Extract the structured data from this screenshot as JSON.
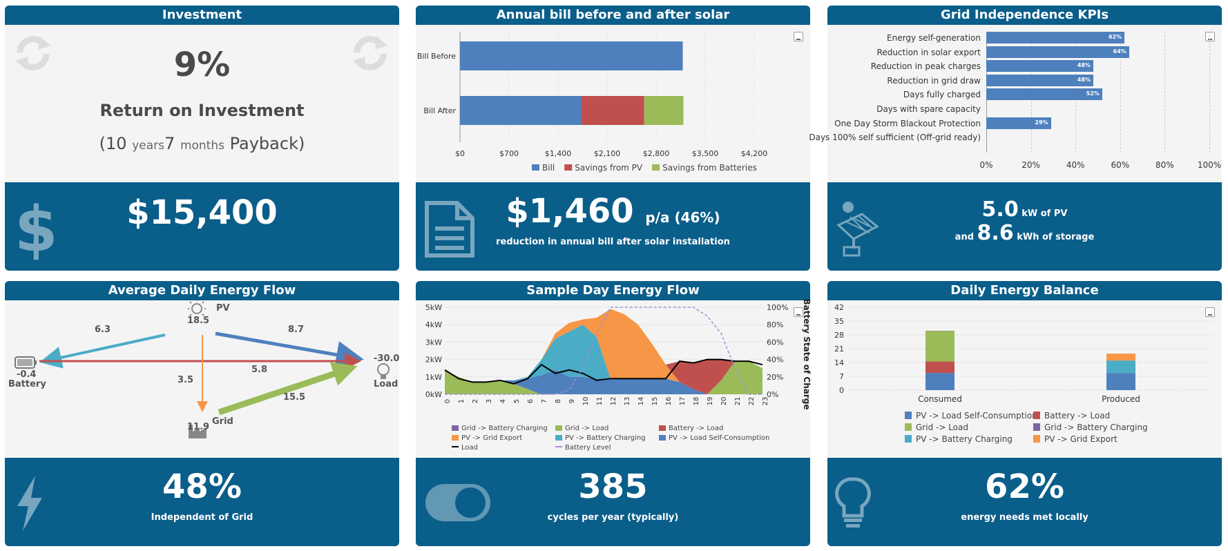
{
  "investment": {
    "title": "Investment",
    "roi_value": "9%",
    "roi_label": "Return on Investment",
    "payback_years": "10",
    "payback_years_unit": "years",
    "payback_months": "7",
    "payback_months_unit": "months",
    "payback_label": "Payback)",
    "payback_open": "(",
    "amount": "$15,400",
    "icons": [
      "refresh-icon",
      "dollar-icon"
    ]
  },
  "bill": {
    "title": "Annual bill before and after solar",
    "amount": "$1,460",
    "amount_suffix": "p/a (46%)",
    "caption": "reduction in annual bill after solar installation",
    "chart_data": {
      "type": "bar",
      "orientation": "horizontal",
      "stacked": true,
      "categories": [
        "Bill Before",
        "Bill After"
      ],
      "series": [
        {
          "name": "Bill",
          "values": [
            3180,
            1730
          ],
          "color": "#4e80bd"
        },
        {
          "name": "Savings from PV",
          "values": [
            0,
            900
          ],
          "color": "#c0504d"
        },
        {
          "name": "Savings from Batteries",
          "values": [
            0,
            560
          ],
          "color": "#9bbb59"
        }
      ],
      "x_ticks": [
        "$0",
        "$700",
        "$1,400",
        "$2,100",
        "$2,800",
        "$3,500",
        "$4,200"
      ],
      "xlim": [
        0,
        4200
      ],
      "legend": "bottom"
    }
  },
  "grid_kpi": {
    "title": "Grid Independence KPIs",
    "pv_value": "5.0",
    "pv_unit": "kW of PV",
    "and_label": "and",
    "storage_value": "8.6",
    "storage_unit": "kWh of storage",
    "chart_data": {
      "type": "bar",
      "orientation": "horizontal",
      "categories": [
        "Energy self-generation",
        "Reduction in solar export",
        "Reduction in peak charges",
        "Reduction in grid draw",
        "Days fully charged",
        "Days with spare capacity",
        "One Day Storm Blackout Protection",
        "Days 100% self sufficient (Off-grid ready)"
      ],
      "values": [
        62,
        64,
        48,
        48,
        52,
        0,
        29,
        0
      ],
      "value_labels": [
        "62%",
        "64%",
        "48%",
        "48%",
        "52%",
        "",
        "29%",
        ""
      ],
      "x_ticks": [
        "0%",
        "20%",
        "40%",
        "60%",
        "80%",
        "100%"
      ],
      "xlim": [
        0,
        100
      ]
    }
  },
  "flow": {
    "title": "Average Daily Energy Flow",
    "pv_label": "PV",
    "pv_value": "18.5",
    "battery_label": "Battery",
    "battery_value": "-0.4",
    "load_label": "Load",
    "load_value": "-30.0",
    "grid_label": "Grid",
    "grid_value": "11.9",
    "pv_to_battery": "6.3",
    "pv_to_load": "8.7",
    "battery_to_load": "5.8",
    "pv_to_grid": "3.5",
    "grid_to_load": "15.5",
    "independent_value": "48%",
    "independent_label": "Independent of Grid",
    "colors": {
      "pv_battery": "#4bacc6",
      "pv_load": "#4e80bd",
      "battery_load": "#c0504d",
      "pv_grid": "#f79646",
      "grid_load": "#9bbb59"
    }
  },
  "sample_day": {
    "title": "Sample Day Energy Flow",
    "cycles_value": "385",
    "cycles_label": "cycles per year (typically)",
    "y_ticks_left": [
      "5kW",
      "4kW",
      "3kW",
      "2kW",
      "1kW",
      "0kW"
    ],
    "y_ticks_right": [
      "100%",
      "80%",
      "60%",
      "40%",
      "20%",
      "0%"
    ],
    "y_right_label": "Battery State of Charge",
    "x_ticks": [
      "0",
      "1",
      "2",
      "3",
      "4",
      "5",
      "6",
      "7",
      "8",
      "9",
      "10",
      "11",
      "12",
      "13",
      "14",
      "15",
      "16",
      "17",
      "18",
      "19",
      "20",
      "21",
      "22",
      "23"
    ],
    "legend": [
      "Grid -> Battery Charging",
      "Grid -> Load",
      "Battery -> Load",
      "PV -> Grid Export",
      "PV -> Battery Charging",
      "PV -> Load Self-Consumption",
      "Load",
      "Battery Level"
    ],
    "chart_data": {
      "type": "area",
      "x": [
        0,
        1,
        2,
        3,
        4,
        5,
        6,
        7,
        8,
        9,
        10,
        11,
        12,
        13,
        14,
        15,
        16,
        17,
        18,
        19,
        20,
        21,
        22,
        23
      ],
      "series": [
        {
          "name": "Grid -> Load",
          "values": [
            1.4,
            1.0,
            0.7,
            0.7,
            0.8,
            0.6,
            0.3,
            0,
            0,
            0,
            0,
            0,
            0,
            0,
            0,
            0,
            0,
            0,
            0,
            0,
            0.8,
            1.9,
            1.9,
            1.5
          ]
        },
        {
          "name": "PV -> Load Self-Consumption",
          "values": [
            0,
            0,
            0,
            0,
            0,
            0.2,
            0.6,
            1.1,
            1.4,
            1.0,
            1.0,
            0.9,
            0.9,
            0.9,
            0.9,
            0.9,
            0.9,
            0.7,
            0.3,
            0,
            0,
            0,
            0,
            0
          ]
        },
        {
          "name": "PV -> Battery Charging",
          "values": [
            0,
            0,
            0,
            0,
            0,
            0,
            0.1,
            0.9,
            1.8,
            2.6,
            3.0,
            2.4,
            0,
            0,
            0,
            0,
            0,
            0,
            0,
            0,
            0,
            0,
            0,
            0
          ]
        },
        {
          "name": "PV -> Grid Export",
          "values": [
            0,
            0,
            0,
            0,
            0,
            0,
            0,
            0,
            0.3,
            0.5,
            0.3,
            1.1,
            4.0,
            3.7,
            3.1,
            2.0,
            0.8,
            0,
            0,
            0,
            0,
            0,
            0,
            0
          ]
        },
        {
          "name": "Battery -> Load",
          "values": [
            0,
            0,
            0,
            0,
            0,
            0,
            0,
            0,
            0,
            0,
            0,
            0,
            0,
            0,
            0,
            0,
            0,
            1.2,
            1.5,
            2.0,
            1.2,
            0,
            0,
            0
          ]
        }
      ],
      "load": [
        1.4,
        0.9,
        0.7,
        0.7,
        0.8,
        0.6,
        0.9,
        1.7,
        1.2,
        1.4,
        1.2,
        0.8,
        0.9,
        0.9,
        0.9,
        0.9,
        0.9,
        1.9,
        1.8,
        2.0,
        2.0,
        1.9,
        1.9,
        1.7
      ],
      "battery_level": [
        0,
        0,
        0,
        0,
        0,
        0,
        0,
        0,
        0,
        5,
        30,
        70,
        100,
        100,
        100,
        100,
        100,
        100,
        100,
        90,
        70,
        30,
        0,
        0
      ],
      "ylim": [
        0,
        5
      ],
      "y2lim": [
        0,
        100
      ]
    }
  },
  "balance": {
    "title": "Daily Energy Balance",
    "needs_value": "62%",
    "needs_label": "energy needs met locally",
    "y_ticks": [
      "42",
      "35",
      "28",
      "21",
      "14",
      "7",
      "0"
    ],
    "legend": [
      "PV -> Load Self-Consumption",
      "Battery -> Load",
      "Grid -> Load",
      "Grid -> Battery Charging",
      "PV -> Battery Charging",
      "PV -> Grid Export"
    ],
    "chart_data": {
      "type": "bar",
      "stacked": true,
      "categories": [
        "Consumed",
        "Produced"
      ],
      "series": [
        {
          "name": "PV -> Load Self-Consumption",
          "values": [
            8.7,
            8.7
          ],
          "color": "#4e80bd"
        },
        {
          "name": "Battery -> Load",
          "values": [
            5.8,
            0
          ],
          "color": "#c0504d"
        },
        {
          "name": "Grid -> Load",
          "values": [
            15.5,
            0
          ],
          "color": "#9bbb59"
        },
        {
          "name": "Grid -> Battery Charging",
          "values": [
            0.1,
            0
          ],
          "color": "#8064a2"
        },
        {
          "name": "PV -> Battery Charging",
          "values": [
            0,
            6.3
          ],
          "color": "#4bacc6"
        },
        {
          "name": "PV -> Grid Export",
          "values": [
            0,
            3.5
          ],
          "color": "#f79646"
        }
      ],
      "ylim": [
        0,
        42
      ]
    }
  }
}
